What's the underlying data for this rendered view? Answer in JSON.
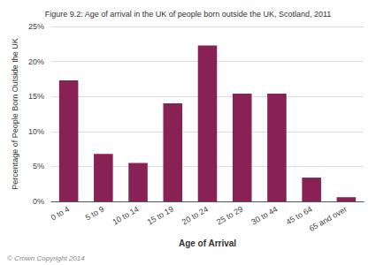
{
  "chart_data": {
    "type": "bar",
    "title": "Figure 9.2: Age of arrival in the UK of people born outside the UK, Scotland, 2011",
    "xlabel": "Age of Arrival",
    "ylabel": "Percentage of People Born Outside the UK",
    "categories": [
      "0 to 4",
      "5 to 9",
      "10 to 14",
      "15 to 19",
      "20 to 24",
      "25 to 29",
      "30 to 44",
      "45 to 64",
      "65 and over"
    ],
    "values": [
      17.3,
      6.8,
      5.5,
      14.0,
      22.3,
      15.4,
      15.4,
      3.4,
      0.6
    ],
    "color": "#882255",
    "ylim": [
      0,
      25
    ],
    "yticks": [
      {
        "value": 0,
        "label": "0%"
      },
      {
        "value": 5,
        "label": "5%"
      },
      {
        "value": 10,
        "label": "10%"
      },
      {
        "value": 15,
        "label": "15%"
      },
      {
        "value": 20,
        "label": "20%"
      },
      {
        "value": 25,
        "label": "25%"
      }
    ],
    "grid": true,
    "annotations": [
      "© Crown Copyright 2014"
    ]
  }
}
